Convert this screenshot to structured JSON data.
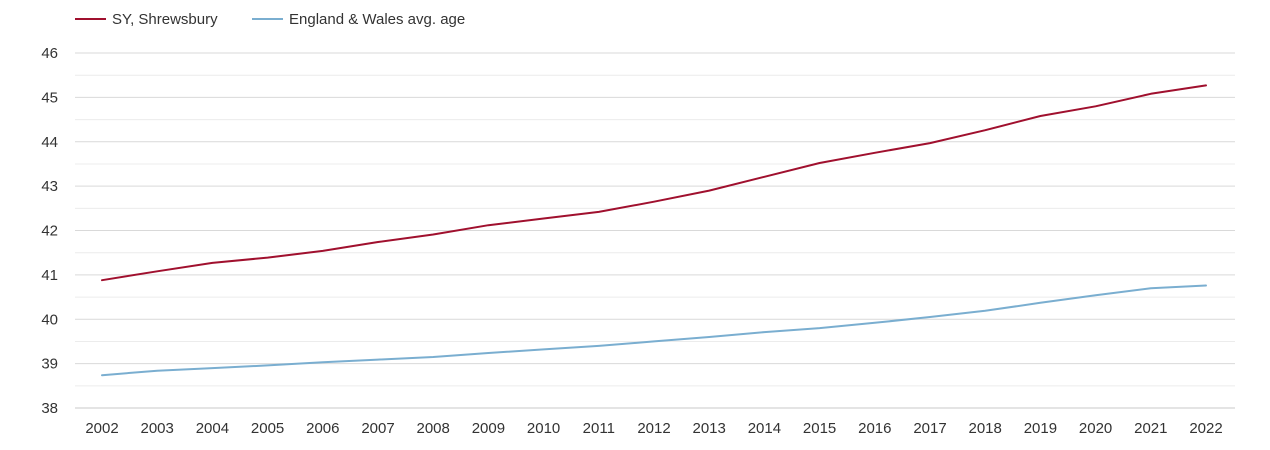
{
  "chart_data": {
    "type": "line",
    "title": "",
    "xlabel": "",
    "ylabel": "",
    "x": [
      "2002",
      "2003",
      "2004",
      "2005",
      "2006",
      "2007",
      "2008",
      "2009",
      "2010",
      "2011",
      "2012",
      "2013",
      "2014",
      "2015",
      "2016",
      "2017",
      "2018",
      "2019",
      "2020",
      "2021",
      "2022"
    ],
    "ylim": [
      38,
      46
    ],
    "yticks": [
      "38",
      "39",
      "40",
      "41",
      "42",
      "43",
      "44",
      "45",
      "46"
    ],
    "grid": true,
    "legend_position": "top-left",
    "series": [
      {
        "name": "SY, Shrewsbury",
        "color": "#a0102e",
        "values": [
          40.88,
          41.08,
          41.27,
          41.39,
          41.54,
          41.74,
          41.91,
          42.12,
          42.27,
          42.42,
          42.65,
          42.9,
          43.21,
          43.52,
          43.75,
          43.97,
          44.26,
          44.58,
          44.8,
          45.08,
          45.27
        ]
      },
      {
        "name": "England & Wales avg. age",
        "color": "#7aaed0",
        "values": [
          38.74,
          38.84,
          38.9,
          38.96,
          39.03,
          39.09,
          39.15,
          39.24,
          39.32,
          39.4,
          39.5,
          39.6,
          39.71,
          39.8,
          39.92,
          40.05,
          40.19,
          40.37,
          40.54,
          40.7,
          40.76
        ]
      }
    ]
  }
}
